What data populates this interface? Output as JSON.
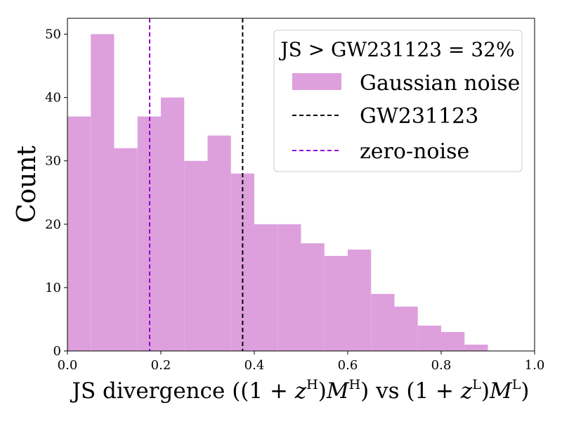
{
  "chart_data": {
    "type": "histogram",
    "title": "",
    "xlabel_parts": {
      "prefix": "JS divergence ((1 + ",
      "z": "z",
      "supH": "H",
      "mid": ")",
      "M": "M",
      "vs_open": ") vs (1 + ",
      "supL": "L",
      "close": ")"
    },
    "ylabel": "Count",
    "xlim": [
      0.0,
      1.0
    ],
    "ylim": [
      0,
      52.5
    ],
    "xticks": [
      0.0,
      0.2,
      0.4,
      0.6,
      0.8,
      1.0
    ],
    "xtick_labels": [
      "0.0",
      "0.2",
      "0.4",
      "0.6",
      "0.8",
      "1.0"
    ],
    "yticks": [
      0,
      10,
      20,
      30,
      40,
      50
    ],
    "ytick_labels": [
      "0",
      "10",
      "20",
      "30",
      "40",
      "50"
    ],
    "bin_edges": [
      0.0,
      0.05,
      0.1,
      0.15,
      0.2,
      0.25,
      0.3,
      0.35,
      0.4,
      0.45,
      0.5,
      0.55,
      0.6,
      0.65,
      0.7,
      0.75,
      0.8,
      0.85,
      0.9
    ],
    "counts": [
      37,
      50,
      32,
      37,
      40,
      30,
      34,
      28,
      20,
      20,
      17,
      15,
      16,
      9,
      7,
      4,
      3,
      1
    ],
    "bar_color": "#dda0dd",
    "vlines": [
      {
        "name": "GW231123",
        "x": 0.375,
        "color": "#000000",
        "style": "dashed"
      },
      {
        "name": "zero-noise",
        "x": 0.176,
        "color": "#9400d3",
        "style": "dashed"
      }
    ],
    "legend": {
      "title": "JS > GW231123 = 32%",
      "entries": [
        {
          "label": "Gaussian noise",
          "kind": "patch",
          "color": "#dda0dd"
        },
        {
          "label": "GW231123",
          "kind": "line",
          "color": "#000000"
        },
        {
          "label": "zero-noise",
          "kind": "line",
          "color": "#9400d3"
        }
      ],
      "location": "top-right"
    }
  }
}
